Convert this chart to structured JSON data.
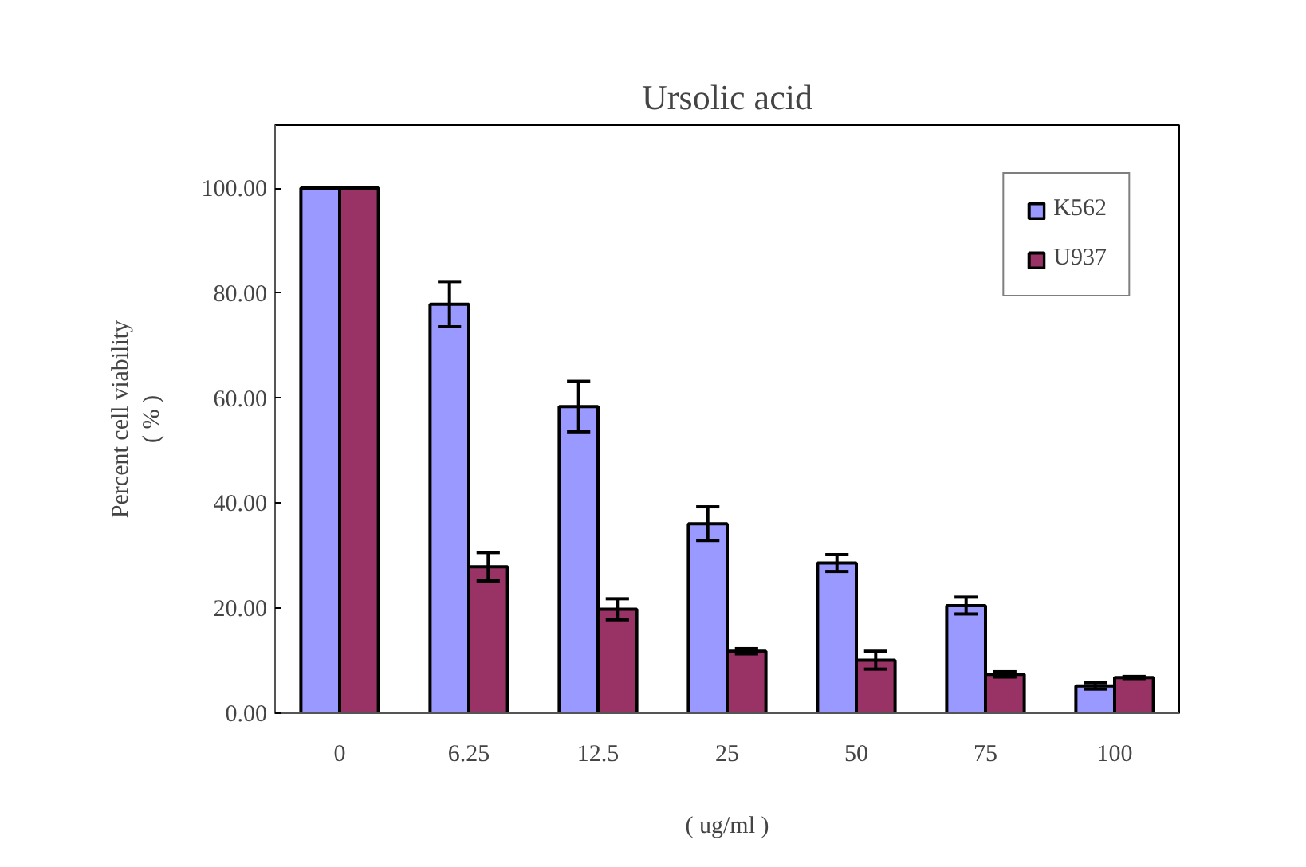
{
  "chart_data": {
    "type": "bar",
    "title": "Ursolic acid",
    "xlabel": "( ug/ml )",
    "ylabel": "Percent cell viability\n( % )",
    "categories": [
      "0",
      "6.25",
      "12.5",
      "25",
      "50",
      "75",
      "100"
    ],
    "series": [
      {
        "name": "K562",
        "color": "#9999ff",
        "values": [
          100,
          77.9,
          58.4,
          36.1,
          28.6,
          20.5,
          5.2
        ],
        "errors": [
          0,
          4.3,
          4.8,
          3.2,
          1.6,
          1.6,
          0.6
        ]
      },
      {
        "name": "U937",
        "color": "#993366",
        "values": [
          100,
          27.9,
          19.8,
          11.8,
          10.1,
          7.4,
          6.8
        ],
        "errors": [
          0,
          2.7,
          2,
          0.5,
          1.7,
          0.5,
          0.2
        ]
      }
    ],
    "ylim": [
      0,
      112
    ],
    "yticks": [
      {
        "value": 0,
        "label": "0.00"
      },
      {
        "value": 20,
        "label": "20.00"
      },
      {
        "value": 40,
        "label": "40.00"
      },
      {
        "value": 60,
        "label": "60.00"
      },
      {
        "value": 80,
        "label": "80.00"
      },
      {
        "value": 100,
        "label": "100.00"
      }
    ],
    "grid": false,
    "legend": "top right"
  }
}
